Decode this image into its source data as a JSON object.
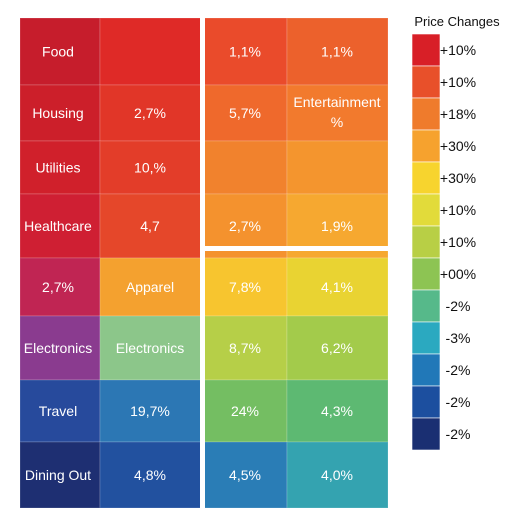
{
  "chart_data": {
    "type": "heatmap",
    "legend": {
      "title": "Price Changes",
      "placement": "right",
      "entries": [
        {
          "label": "+10%",
          "color": "#d81f27"
        },
        {
          "label": "+10%",
          "color": "#e8502a"
        },
        {
          "label": "+18%",
          "color": "#ef7b2c"
        },
        {
          "label": "+30%",
          "color": "#f6a22e"
        },
        {
          "label": "+30%",
          "color": "#f7d42e"
        },
        {
          "label": "+10%",
          "color": "#e2db3a"
        },
        {
          "label": "+10%",
          "color": "#b8cf45"
        },
        {
          "label": "+00%",
          "color": "#8dc453"
        },
        {
          "label": "-2%",
          "color": "#56b98a"
        },
        {
          "label": "-3%",
          "color": "#2ba9c0"
        },
        {
          "label": "-2%",
          "color": "#2178b8"
        },
        {
          "label": "-2%",
          "color": "#1c4f9f"
        },
        {
          "label": "-2%",
          "color": "#1a2f72"
        }
      ]
    },
    "rows": [
      "Food",
      "Housing",
      "Utilities",
      "Healthcare",
      "",
      "Electronics",
      "Travel",
      "Dining Out"
    ],
    "cells": [
      {
        "row": 0,
        "col": 0,
        "label": "Food",
        "color": "#c61d2c"
      },
      {
        "row": 0,
        "col": 1,
        "label": "",
        "color": "#df2a27"
      },
      {
        "row": 0,
        "col": 2,
        "label": "1,1%",
        "color": "#ea4b2b"
      },
      {
        "row": 0,
        "col": 3,
        "label": "1,1%",
        "color": "#ec612c"
      },
      {
        "row": 1,
        "col": 0,
        "label": "Housing",
        "color": "#cc1f2a"
      },
      {
        "row": 1,
        "col": 1,
        "label": "2,7%",
        "color": "#e13628"
      },
      {
        "row": 1,
        "col": 2,
        "label": "5,7%",
        "color": "#ef692c"
      },
      {
        "row": 1,
        "col": 3,
        "label": "Entertainment %",
        "color": "#f27a2d"
      },
      {
        "row": 2,
        "col": 0,
        "label": "Utilities",
        "color": "#d0202b"
      },
      {
        "row": 2,
        "col": 1,
        "label": "10,%",
        "color": "#e33d29"
      },
      {
        "row": 2,
        "col": 2,
        "label": "",
        "color": "#f1822d"
      },
      {
        "row": 2,
        "col": 3,
        "label": "",
        "color": "#f4952e"
      },
      {
        "row": 3,
        "col": 0,
        "label": "Healthcare",
        "color": "#cf1f33"
      },
      {
        "row": 3,
        "col": 1,
        "label": "4,7",
        "color": "#e5472a"
      },
      {
        "row": 3,
        "col": 2,
        "label": "2,7%",
        "color": "#f4922e"
      },
      {
        "row": 3,
        "col": 3,
        "label": "1,9%",
        "color": "#f6a830"
      },
      {
        "row": 4,
        "col": 0,
        "label": "2,7%",
        "color": "#c02553"
      },
      {
        "row": 4,
        "col": 1,
        "label": "Apparel",
        "color": "#f4a12f"
      },
      {
        "row": 4,
        "col": 2,
        "label": "7,8%",
        "color": "#f7c52f"
      },
      {
        "row": 4,
        "col": 3,
        "label": "4,1%",
        "color": "#e9d332"
      },
      {
        "row": 5,
        "col": 0,
        "label": "Electronics",
        "color": "#8a3b8f"
      },
      {
        "row": 5,
        "col": 1,
        "label": "Electronics",
        "color": "#8cc68a"
      },
      {
        "row": 5,
        "col": 2,
        "label": "8,7%",
        "color": "#b6cf48"
      },
      {
        "row": 5,
        "col": 3,
        "label": "6,2%",
        "color": "#a3cb4b"
      },
      {
        "row": 6,
        "col": 0,
        "label": "Travel",
        "color": "#274a9c"
      },
      {
        "row": 6,
        "col": 1,
        "label": "19,7%",
        "color": "#2c77b4"
      },
      {
        "row": 6,
        "col": 2,
        "label": "24%",
        "color": "#74be62"
      },
      {
        "row": 6,
        "col": 3,
        "label": "4,3%",
        "color": "#5db972"
      },
      {
        "row": 7,
        "col": 0,
        "label": "Dining Out",
        "color": "#1e2f72"
      },
      {
        "row": 7,
        "col": 1,
        "label": "4,8%",
        "color": "#22519f"
      },
      {
        "row": 7,
        "col": 2,
        "label": "4,5%",
        "color": "#2a7db6"
      },
      {
        "row": 7,
        "col": 3,
        "label": "4,0%",
        "color": "#34a3b0"
      }
    ]
  }
}
